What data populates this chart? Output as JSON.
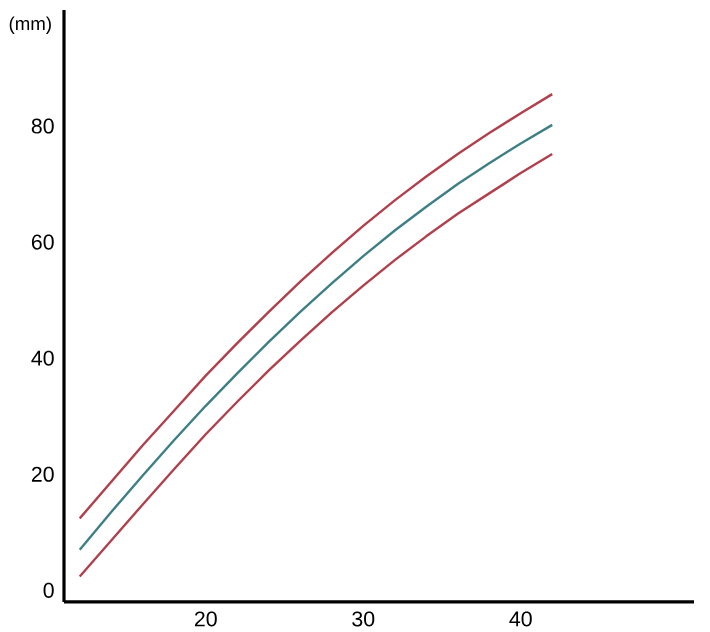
{
  "chart_data": {
    "type": "line",
    "ylabel": "(mm)",
    "x": [
      12,
      14,
      16,
      18,
      20,
      22,
      24,
      26,
      28,
      30,
      32,
      34,
      36,
      38,
      40,
      42
    ],
    "series": [
      {
        "color": "#b0404c",
        "values": [
          12.4,
          18.7,
          25,
          31,
          37,
          42.6,
          48,
          53.2,
          58.1,
          62.8,
          67.2,
          71.3,
          75.2,
          78.8,
          82.2,
          85.5
        ]
      },
      {
        "color": "#3e7f86",
        "values": [
          7,
          13.5,
          19.8,
          25.9,
          31.8,
          37.4,
          42.8,
          48,
          52.9,
          57.6,
          62,
          66.1,
          70,
          73.6,
          77,
          80.2
        ]
      },
      {
        "color": "#b0404c",
        "values": [
          2.4,
          8.6,
          14.8,
          20.9,
          26.9,
          32.5,
          37.9,
          43,
          47.9,
          52.5,
          56.9,
          61,
          64.9,
          68.4,
          71.9,
          75.2
        ]
      }
    ],
    "xlim": [
      11,
      51
    ],
    "ylim": [
      -2,
      100
    ],
    "xticks": [
      20,
      30,
      40
    ],
    "yticks": [
      0,
      20,
      40,
      60,
      80
    ],
    "grid": false,
    "marker": "none",
    "line_style": "solid"
  }
}
